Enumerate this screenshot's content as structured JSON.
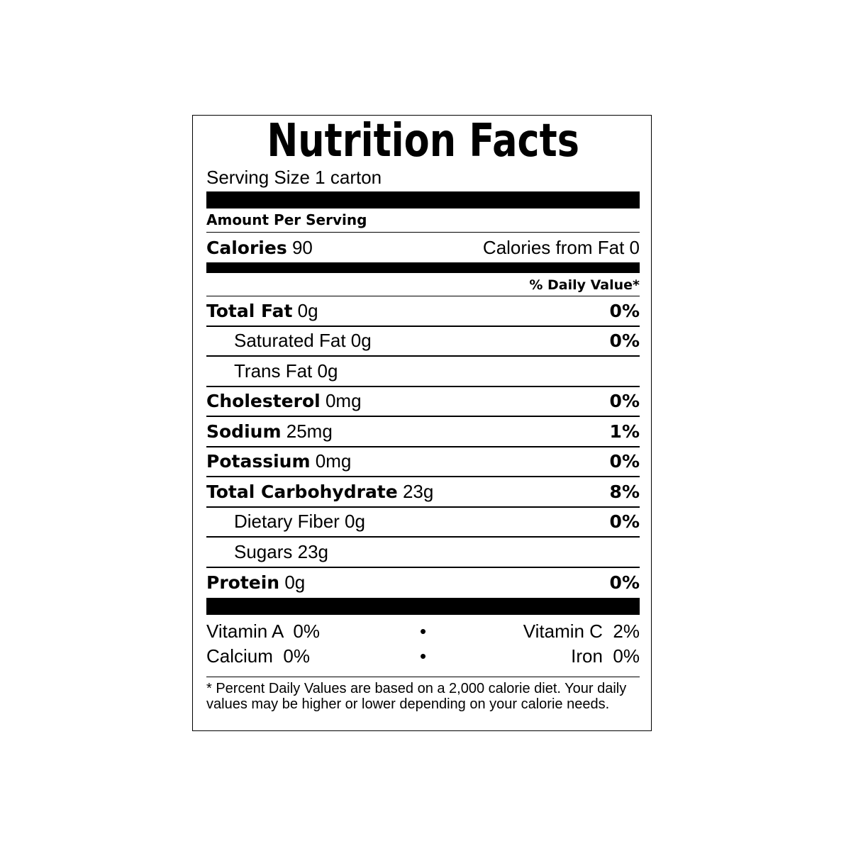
{
  "title": "Nutrition Facts",
  "serving_size": "Serving Size 1 carton",
  "amount_per_serving": "Amount Per Serving",
  "calories": {
    "label": "Calories",
    "value": "90",
    "from_fat": "Calories from Fat 0"
  },
  "daily_value_header": "% Daily Value*",
  "nutrients": [
    {
      "label": "Total Fat",
      "amount": "0g",
      "dv": "0%"
    },
    {
      "label": "Saturated Fat 0g",
      "amount": "",
      "dv": "0%"
    },
    {
      "label": "Trans Fat 0g",
      "amount": "",
      "dv": ""
    },
    {
      "label": "Cholesterol",
      "amount": "0mg",
      "dv": "0%"
    },
    {
      "label": "Sodium",
      "amount": "25mg",
      "dv": "1%"
    },
    {
      "label": "Potassium",
      "amount": "0mg",
      "dv": "0%"
    },
    {
      "label": "Total Carbohydrate",
      "amount": "23g",
      "dv": "8%"
    },
    {
      "label": "Dietary Fiber 0g",
      "amount": "",
      "dv": "0%"
    },
    {
      "label": "Sugars 23g",
      "amount": "",
      "dv": ""
    },
    {
      "label": "Protein",
      "amount": "0g",
      "dv": "0%"
    }
  ],
  "vitamins": [
    {
      "left": "Vitamin A  0%",
      "sep": "•",
      "right": "Vitamin C  2%"
    },
    {
      "left": "Calcium  0%",
      "sep": "•",
      "right": "Iron  0%"
    }
  ],
  "footnote": "* Percent Daily Values are based on a 2,000 calorie diet. Your daily values may be higher or lower depending on your calorie needs."
}
